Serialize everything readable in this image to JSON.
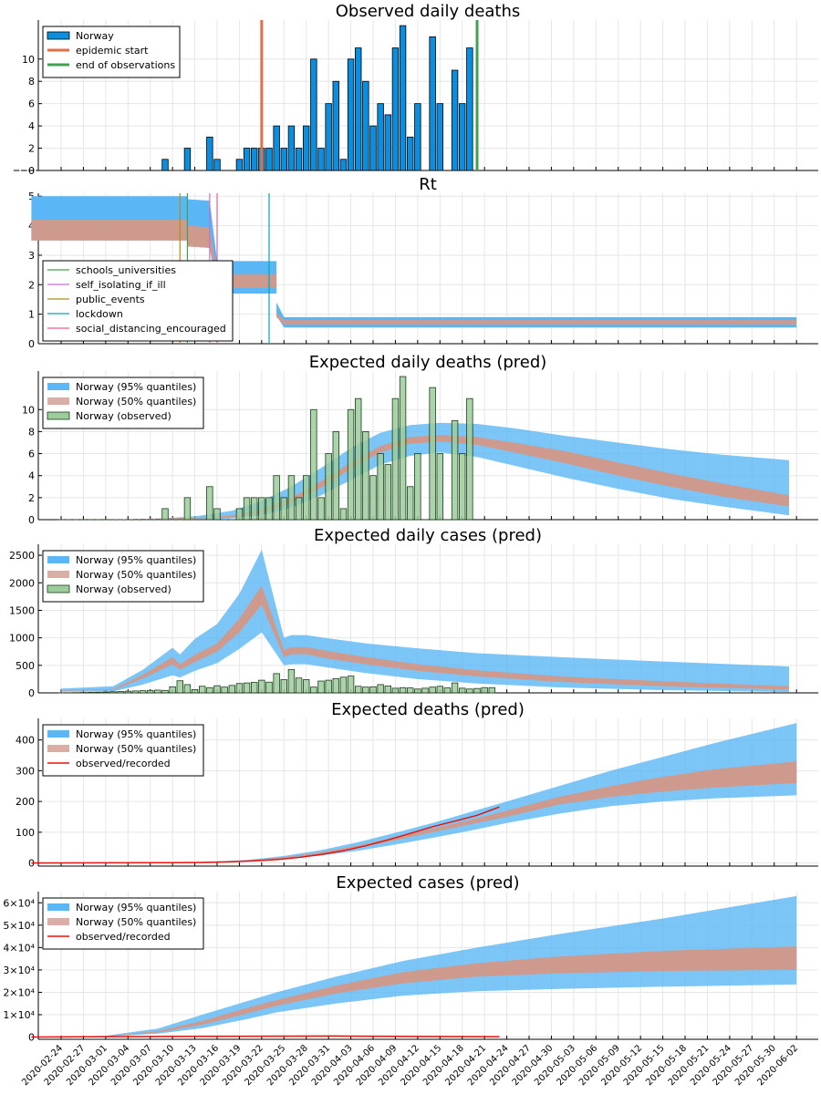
{
  "x_dates": [
    "2020-02-24",
    "2020-02-27",
    "2020-03-01",
    "2020-03-04",
    "2020-03-07",
    "2020-03-10",
    "2020-03-13",
    "2020-03-16",
    "2020-03-19",
    "2020-03-22",
    "2020-03-25",
    "2020-03-28",
    "2020-03-31",
    "2020-04-03",
    "2020-04-06",
    "2020-04-09",
    "2020-04-12",
    "2020-04-15",
    "2020-04-18",
    "2020-04-21",
    "2020-04-24",
    "2020-04-27",
    "2020-04-30",
    "2020-05-03",
    "2020-05-06",
    "2020-05-09",
    "2020-05-12",
    "2020-05-15",
    "2020-05-18",
    "2020-05-21",
    "2020-05-24",
    "2020-05-27",
    "2020-05-30",
    "2020-06-02"
  ],
  "colors": {
    "band95": "#5ab6f5",
    "band50": "#cf9a8e",
    "bars": "#0a8fe0",
    "obs_bars": "#9ccc9c",
    "start_line": "#e26f46",
    "end_line": "#3da44d",
    "recorded": "#e8120c"
  },
  "chart_data": [
    {
      "type": "bar",
      "title": "Observed daily deaths",
      "day_start": -1,
      "day_end": 101,
      "ylim": [
        0,
        13.5
      ],
      "yticks": [
        0,
        2,
        4,
        6,
        8,
        10
      ],
      "grid": true,
      "legend_position": "top-left",
      "legend": [
        {
          "label": "Norway",
          "kind": "bar",
          "color": "#0a8fe0"
        },
        {
          "label": "epidemic start",
          "kind": "line",
          "color": "#e26f46"
        },
        {
          "label": "end of observations",
          "kind": "line",
          "color": "#3da44d"
        }
      ],
      "x_start": "2020-02-18",
      "values": [
        0,
        0,
        0,
        0,
        0,
        0,
        0,
        0,
        0,
        0,
        0,
        0,
        0,
        0,
        0,
        0,
        0,
        0,
        0,
        0,
        1,
        0,
        0,
        2,
        0,
        0,
        3,
        1,
        0,
        0,
        1,
        2,
        2,
        2,
        2,
        4,
        2,
        4,
        2,
        4,
        10,
        2,
        6,
        8,
        1,
        10,
        11,
        8,
        4,
        6,
        5,
        11,
        13,
        3,
        6,
        0,
        12,
        6,
        0,
        9,
        6,
        11
      ],
      "epidemic_start": "2020-03-22",
      "end_of_observations": "2020-04-20"
    },
    {
      "type": "area",
      "title": "Rt",
      "ylim": [
        0,
        5.1
      ],
      "yticks": [
        0,
        1,
        2,
        3,
        4,
        5
      ],
      "grid": true,
      "legend_position": "bottom-left",
      "band95": {
        "x": [
          "2020-02-20",
          "2020-03-12",
          "2020-03-12",
          "2020-03-15",
          "2020-03-16",
          "2020-03-24",
          "2020-03-24",
          "2020-03-25",
          "2020-06-02"
        ],
        "lo": [
          3.5,
          3.5,
          3.3,
          3.25,
          1.7,
          1.7,
          0.95,
          0.55,
          0.55
        ],
        "hi": [
          5.0,
          5.0,
          4.9,
          4.85,
          2.8,
          2.8,
          1.4,
          0.9,
          0.9
        ]
      },
      "band50": {
        "x": [
          "2020-02-20",
          "2020-03-12",
          "2020-03-12",
          "2020-03-15",
          "2020-03-16",
          "2020-03-24",
          "2020-03-24",
          "2020-03-25",
          "2020-06-02"
        ],
        "lo": [
          3.5,
          3.5,
          3.3,
          3.25,
          1.9,
          1.9,
          0.9,
          0.65,
          0.65
        ],
        "hi": [
          4.2,
          4.2,
          4.0,
          3.95,
          2.35,
          2.35,
          1.05,
          0.8,
          0.8
        ]
      },
      "interventions": [
        {
          "label": "schools_universities",
          "date": "2020-03-12",
          "color": "#3da44d"
        },
        {
          "label": "self_isolating_if_ill",
          "date": "2020-03-15",
          "color": "#c271d2"
        },
        {
          "label": "public_events",
          "date": "2020-03-11",
          "color": "#ac8d18"
        },
        {
          "label": "lockdown",
          "date": "2020-03-23",
          "color": "#00a9ad"
        },
        {
          "label": "social_distancing_encouraged",
          "date": "2020-03-16",
          "color": "#ed5d92"
        }
      ]
    },
    {
      "type": "area",
      "title": "Expected daily deaths (pred)",
      "ylim": [
        0,
        13.5
      ],
      "yticks": [
        0,
        2,
        4,
        6,
        8,
        10
      ],
      "grid": true,
      "legend_position": "top-left",
      "legend": [
        {
          "label": "Norway (95% quantiles)",
          "kind": "band95"
        },
        {
          "label": "Norway (50% quantiles)",
          "kind": "band50"
        },
        {
          "label": "Norway (observed)",
          "kind": "obsbar"
        }
      ],
      "pred": {
        "x": [
          "2020-02-24",
          "2020-03-01",
          "2020-03-08",
          "2020-03-13",
          "2020-03-18",
          "2020-03-22",
          "2020-03-26",
          "2020-03-30",
          "2020-04-03",
          "2020-04-07",
          "2020-04-11",
          "2020-04-15",
          "2020-04-20",
          "2020-04-25",
          "2020-05-02",
          "2020-05-09",
          "2020-05-16",
          "2020-05-23",
          "2020-06-01"
        ],
        "lo95": [
          0,
          0,
          0,
          0,
          0.1,
          0.4,
          1.1,
          2.2,
          3.6,
          5.0,
          5.8,
          6.1,
          5.7,
          4.9,
          3.8,
          2.8,
          1.9,
          1.2,
          0.4
        ],
        "lo50": [
          0,
          0,
          0,
          0.1,
          0.2,
          0.6,
          1.5,
          2.9,
          4.6,
          6.1,
          6.9,
          7.1,
          6.8,
          6.1,
          5.1,
          4.0,
          3.0,
          2.1,
          1.2
        ],
        "hi50": [
          0,
          0,
          0.1,
          0.2,
          0.4,
          0.9,
          2.0,
          3.5,
          5.2,
          6.7,
          7.5,
          7.7,
          7.5,
          7.0,
          6.2,
          5.2,
          4.2,
          3.3,
          2.2
        ],
        "hi95": [
          0,
          0,
          0.1,
          0.3,
          0.8,
          1.7,
          3.0,
          4.7,
          6.5,
          7.9,
          8.6,
          8.8,
          8.7,
          8.3,
          7.6,
          7.0,
          6.4,
          5.9,
          5.4
        ]
      },
      "obs_start": "2020-02-24",
      "observed": [
        0,
        0,
        0,
        0,
        0,
        0,
        0,
        0,
        0,
        0,
        0,
        0,
        0,
        0,
        1,
        0,
        0,
        2,
        0,
        0,
        3,
        1,
        0,
        0,
        1,
        2,
        2,
        2,
        2,
        4,
        2,
        4,
        2,
        4,
        10,
        2,
        6,
        8,
        1,
        10,
        11,
        8,
        4,
        6,
        5,
        11,
        13,
        3,
        6,
        0,
        12,
        6,
        0,
        9,
        6,
        11
      ]
    },
    {
      "type": "area",
      "title": "Expected daily cases (pred)",
      "ylim": [
        0,
        2700
      ],
      "yticks": [
        0,
        500,
        1000,
        1500,
        2000,
        2500
      ],
      "grid": true,
      "legend_position": "top-left",
      "legend": [
        {
          "label": "Norway (95% quantiles)",
          "kind": "band95"
        },
        {
          "label": "Norway (50% quantiles)",
          "kind": "band50"
        },
        {
          "label": "Norway (observed)",
          "kind": "obsbar"
        }
      ],
      "pred": {
        "x": [
          "2020-02-24",
          "2020-03-02",
          "2020-03-06",
          "2020-03-10",
          "2020-03-11",
          "2020-03-13",
          "2020-03-16",
          "2020-03-19",
          "2020-03-22",
          "2020-03-25",
          "2020-03-26",
          "2020-03-28",
          "2020-03-31",
          "2020-04-05",
          "2020-04-12",
          "2020-04-20",
          "2020-05-01",
          "2020-05-15",
          "2020-06-01"
        ],
        "lo95": [
          20,
          25,
          150,
          320,
          280,
          400,
          540,
          800,
          1100,
          500,
          520,
          520,
          460,
          360,
          250,
          170,
          100,
          50,
          15
        ],
        "lo50": [
          40,
          50,
          260,
          520,
          420,
          560,
          750,
          1100,
          1600,
          650,
          700,
          700,
          620,
          520,
          400,
          300,
          200,
          120,
          60
        ],
        "hi50": [
          50,
          70,
          330,
          650,
          520,
          690,
          900,
          1350,
          1950,
          780,
          830,
          830,
          760,
          650,
          520,
          410,
          300,
          210,
          120
        ],
        "hi95": [
          80,
          120,
          420,
          820,
          700,
          980,
          1250,
          1800,
          2600,
          1000,
          1050,
          1050,
          990,
          900,
          810,
          720,
          650,
          570,
          480
        ]
      },
      "obs_start": "2020-02-24",
      "observed": [
        0,
        3,
        5,
        8,
        10,
        12,
        15,
        20,
        25,
        30,
        35,
        40,
        45,
        50,
        45,
        110,
        220,
        150,
        60,
        120,
        95,
        130,
        105,
        135,
        170,
        180,
        190,
        230,
        195,
        350,
        240,
        425,
        270,
        240,
        105,
        215,
        230,
        260,
        285,
        305,
        120,
        105,
        110,
        150,
        125,
        85,
        95,
        90,
        70,
        85,
        105,
        120,
        90,
        180,
        85,
        70,
        80,
        95,
        95
      ]
    },
    {
      "type": "area",
      "title": "Expected deaths (pred)",
      "ylim": [
        -10,
        470
      ],
      "yticks": [
        0,
        100,
        200,
        300,
        400
      ],
      "grid": true,
      "legend_position": "top-left",
      "legend": [
        {
          "label": "Norway (95% quantiles)",
          "kind": "band95"
        },
        {
          "label": "Norway (50% quantiles)",
          "kind": "band50"
        },
        {
          "label": "observed/recorded",
          "kind": "line"
        }
      ],
      "pred": {
        "x": [
          "2020-02-20",
          "2020-03-10",
          "2020-03-15",
          "2020-03-20",
          "2020-03-25",
          "2020-03-30",
          "2020-04-04",
          "2020-04-09",
          "2020-04-14",
          "2020-04-19",
          "2020-04-24",
          "2020-05-01",
          "2020-05-08",
          "2020-05-15",
          "2020-05-22",
          "2020-06-02"
        ],
        "lo95": [
          0,
          1,
          3,
          6,
          13,
          24,
          40,
          60,
          82,
          105,
          130,
          160,
          185,
          200,
          210,
          220
        ],
        "lo50": [
          0,
          1,
          3,
          7,
          16,
          30,
          50,
          74,
          100,
          125,
          150,
          190,
          215,
          232,
          245,
          260
        ],
        "hi50": [
          0,
          1,
          4,
          8,
          19,
          35,
          57,
          84,
          112,
          140,
          170,
          215,
          250,
          280,
          305,
          330
        ],
        "hi95": [
          0,
          1,
          4,
          10,
          23,
          42,
          68,
          98,
          130,
          165,
          200,
          250,
          300,
          345,
          390,
          455
        ]
      },
      "recorded": {
        "x": [
          "2020-02-20",
          "2020-03-10",
          "2020-03-14",
          "2020-03-18",
          "2020-03-21",
          "2020-03-24",
          "2020-03-27",
          "2020-03-30",
          "2020-04-02",
          "2020-04-05",
          "2020-04-08",
          "2020-04-11",
          "2020-04-14",
          "2020-04-17",
          "2020-04-20",
          "2020-04-23"
        ],
        "y": [
          0,
          1,
          2,
          4,
          7,
          11,
          18,
          28,
          40,
          56,
          75,
          96,
          118,
          136,
          155,
          182
        ]
      }
    },
    {
      "type": "area",
      "title": "Expected cases (pred)",
      "ylim": [
        -1000,
        65000
      ],
      "yticks": [
        0,
        10000,
        20000,
        30000,
        40000,
        50000,
        60000
      ],
      "ytick_labels": [
        "0",
        "1×10⁴",
        "2×10⁴",
        "3×10⁴",
        "4×10⁴",
        "5×10⁴",
        "6×10⁴"
      ],
      "grid": true,
      "legend_position": "top-left",
      "legend": [
        {
          "label": "Norway (95% quantiles)",
          "kind": "band95"
        },
        {
          "label": "Norway (50% quantiles)",
          "kind": "band50"
        },
        {
          "label": "observed/recorded",
          "kind": "line"
        }
      ],
      "pred": {
        "x": [
          "2020-02-20",
          "2020-03-01",
          "2020-03-08",
          "2020-03-14",
          "2020-03-20",
          "2020-03-24",
          "2020-04-01",
          "2020-04-10",
          "2020-04-20",
          "2020-05-01",
          "2020-05-15",
          "2020-06-02"
        ],
        "lo95": [
          50,
          200,
          1500,
          4000,
          8000,
          11000,
          15000,
          18500,
          20500,
          21500,
          22500,
          23500
        ],
        "lo50": [
          80,
          300,
          2000,
          5500,
          10500,
          14000,
          19500,
          24000,
          27000,
          28500,
          29500,
          30000
        ],
        "hi50": [
          100,
          400,
          2700,
          7200,
          13000,
          16500,
          23000,
          29000,
          33000,
          36000,
          38500,
          40500
        ],
        "hi95": [
          150,
          600,
          3800,
          10000,
          16000,
          20000,
          27000,
          34000,
          40000,
          46000,
          53000,
          63000
        ]
      },
      "recorded": {
        "x": [
          "2020-02-20",
          "2020-03-10",
          "2020-03-20",
          "2020-04-01",
          "2020-04-10",
          "2020-04-23"
        ],
        "y": [
          0,
          300,
          400,
          450,
          350,
          200
        ]
      }
    }
  ]
}
